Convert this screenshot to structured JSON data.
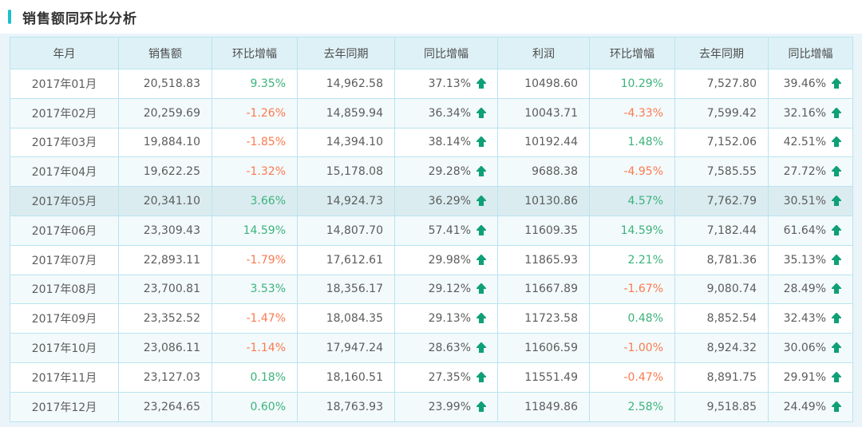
{
  "page": {
    "title": "销售额同环比分析"
  },
  "colors": {
    "accent": "#1bc0cd",
    "positive": "#3cb37c",
    "negative": "#fb7a50",
    "arrow": "#0fa077",
    "header-bg": "#def1f6",
    "zebra-bg": "#f3fafb",
    "highlight-bg": "#dbecf1",
    "border": "#b9e4f0",
    "outer-border": "#9cd6e9"
  },
  "table": {
    "columns": [
      "年月",
      "销售额",
      "环比增幅",
      "去年同期",
      "同比增幅",
      "利润",
      "环比增幅",
      "去年同期",
      "同比增幅"
    ],
    "yoy_arrow": "up",
    "rows": [
      {
        "month": "2017年01月",
        "sales": "20,518.83",
        "sales_mom": "9.35%",
        "sales_ly": "14,962.58",
        "sales_yoy": "37.13%",
        "profit": "10498.60",
        "profit_mom": "10.29%",
        "profit_ly": "7,527.80",
        "profit_yoy": "39.46%",
        "highlighted": false
      },
      {
        "month": "2017年02月",
        "sales": "20,259.69",
        "sales_mom": "-1.26%",
        "sales_ly": "14,859.94",
        "sales_yoy": "36.34%",
        "profit": "10043.71",
        "profit_mom": "-4.33%",
        "profit_ly": "7,599.42",
        "profit_yoy": "32.16%",
        "highlighted": false
      },
      {
        "month": "2017年03月",
        "sales": "19,884.10",
        "sales_mom": "-1.85%",
        "sales_ly": "14,394.10",
        "sales_yoy": "38.14%",
        "profit": "10192.44",
        "profit_mom": "1.48%",
        "profit_ly": "7,152.06",
        "profit_yoy": "42.51%",
        "highlighted": false
      },
      {
        "month": "2017年04月",
        "sales": "19,622.25",
        "sales_mom": "-1.32%",
        "sales_ly": "15,178.08",
        "sales_yoy": "29.28%",
        "profit": "9688.38",
        "profit_mom": "-4.95%",
        "profit_ly": "7,585.55",
        "profit_yoy": "27.72%",
        "highlighted": false
      },
      {
        "month": "2017年05月",
        "sales": "20,341.10",
        "sales_mom": "3.66%",
        "sales_ly": "14,924.73",
        "sales_yoy": "36.29%",
        "profit": "10130.86",
        "profit_mom": "4.57%",
        "profit_ly": "7,762.79",
        "profit_yoy": "30.51%",
        "highlighted": true
      },
      {
        "month": "2017年06月",
        "sales": "23,309.43",
        "sales_mom": "14.59%",
        "sales_ly": "14,807.70",
        "sales_yoy": "57.41%",
        "profit": "11609.35",
        "profit_mom": "14.59%",
        "profit_ly": "7,182.44",
        "profit_yoy": "61.64%",
        "highlighted": false
      },
      {
        "month": "2017年07月",
        "sales": "22,893.11",
        "sales_mom": "-1.79%",
        "sales_ly": "17,612.61",
        "sales_yoy": "29.98%",
        "profit": "11865.93",
        "profit_mom": "2.21%",
        "profit_ly": "8,781.36",
        "profit_yoy": "35.13%",
        "highlighted": false
      },
      {
        "month": "2017年08月",
        "sales": "23,700.81",
        "sales_mom": "3.53%",
        "sales_ly": "18,356.17",
        "sales_yoy": "29.12%",
        "profit": "11667.89",
        "profit_mom": "-1.67%",
        "profit_ly": "9,080.74",
        "profit_yoy": "28.49%",
        "highlighted": false
      },
      {
        "month": "2017年09月",
        "sales": "23,352.52",
        "sales_mom": "-1.47%",
        "sales_ly": "18,084.35",
        "sales_yoy": "29.13%",
        "profit": "11723.58",
        "profit_mom": "0.48%",
        "profit_ly": "8,852.54",
        "profit_yoy": "32.43%",
        "highlighted": false
      },
      {
        "month": "2017年10月",
        "sales": "23,086.11",
        "sales_mom": "-1.14%",
        "sales_ly": "17,947.24",
        "sales_yoy": "28.63%",
        "profit": "11606.59",
        "profit_mom": "-1.00%",
        "profit_ly": "8,924.32",
        "profit_yoy": "30.06%",
        "highlighted": false
      },
      {
        "month": "2017年11月",
        "sales": "23,127.03",
        "sales_mom": "0.18%",
        "sales_ly": "18,160.51",
        "sales_yoy": "27.35%",
        "profit": "11551.49",
        "profit_mom": "-0.47%",
        "profit_ly": "8,891.75",
        "profit_yoy": "29.91%",
        "highlighted": false
      },
      {
        "month": "2017年12月",
        "sales": "23,264.65",
        "sales_mom": "0.60%",
        "sales_ly": "18,763.93",
        "sales_yoy": "23.99%",
        "profit": "11849.86",
        "profit_mom": "2.58%",
        "profit_ly": "9,518.85",
        "profit_yoy": "24.49%",
        "highlighted": false
      }
    ]
  }
}
